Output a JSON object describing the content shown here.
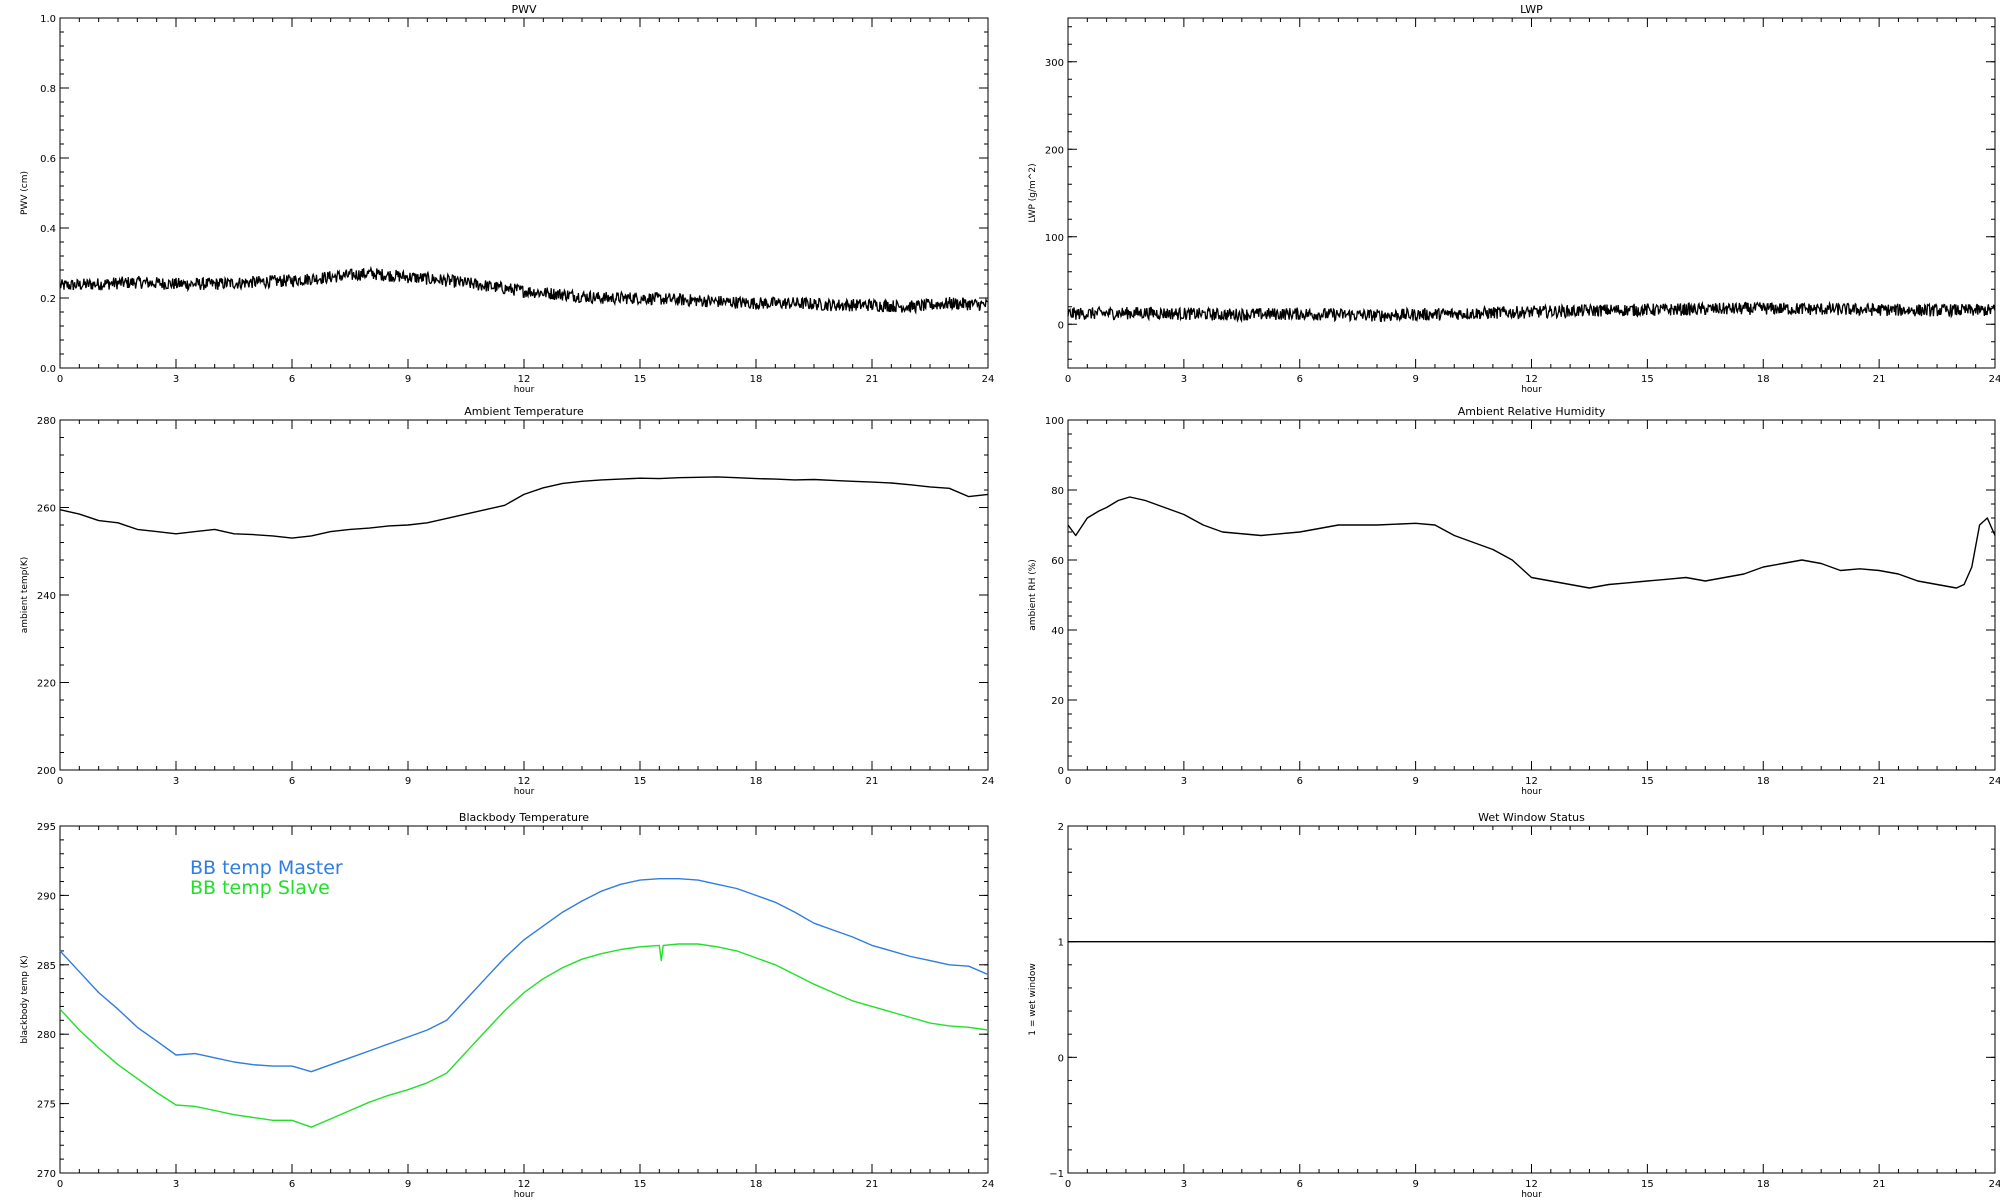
{
  "chart_data": [
    {
      "id": "pwv",
      "type": "line",
      "title": "PWV",
      "xlabel": "hour",
      "ylabel": "PWV (cm)",
      "xlim": [
        0,
        24
      ],
      "ylim": [
        0.0,
        1.0
      ],
      "x_ticks": [
        0,
        3,
        6,
        9,
        12,
        15,
        18,
        21,
        24
      ],
      "y_ticks": [
        0.0,
        0.2,
        0.4,
        0.6,
        0.8,
        1.0
      ],
      "x_tick_labels": [
        "0",
        "3",
        "6",
        "9",
        "12",
        "15",
        "18",
        "21",
        "24"
      ],
      "y_tick_labels": [
        "0.0",
        "0.2",
        "0.4",
        "0.6",
        "0.8",
        "1.0"
      ],
      "grid": false,
      "noisy": true,
      "series": [
        {
          "color": "#000000",
          "x": [
            0,
            1,
            2,
            3,
            4,
            5,
            6,
            7,
            8,
            9,
            10,
            11,
            12,
            13,
            14,
            15,
            16,
            17,
            18,
            19,
            20,
            21,
            22,
            23,
            24
          ],
          "y": [
            0.235,
            0.24,
            0.245,
            0.24,
            0.24,
            0.245,
            0.25,
            0.26,
            0.27,
            0.26,
            0.25,
            0.235,
            0.22,
            0.21,
            0.2,
            0.2,
            0.195,
            0.19,
            0.185,
            0.185,
            0.18,
            0.18,
            0.175,
            0.185,
            0.18
          ]
        }
      ]
    },
    {
      "id": "lwp",
      "type": "line",
      "title": "LWP",
      "xlabel": "hour",
      "ylabel": "LWP (g/m^2)",
      "xlim": [
        0,
        24
      ],
      "ylim": [
        -50,
        350
      ],
      "x_ticks": [
        0,
        3,
        6,
        9,
        12,
        15,
        18,
        21,
        24
      ],
      "y_ticks": [
        0,
        100,
        200,
        300
      ],
      "x_tick_labels": [
        "0",
        "3",
        "6",
        "9",
        "12",
        "15",
        "18",
        "21",
        "24"
      ],
      "y_tick_labels": [
        "0",
        "100",
        "200",
        "300"
      ],
      "grid": false,
      "noisy": true,
      "series": [
        {
          "color": "#000000",
          "x": [
            0,
            2,
            4,
            6,
            8,
            10,
            12,
            14,
            16,
            18,
            20,
            22,
            24
          ],
          "y": [
            12,
            13,
            11,
            12,
            10,
            12,
            14,
            16,
            17,
            18,
            17,
            16,
            16
          ]
        }
      ]
    },
    {
      "id": "ambient-temperature",
      "type": "line",
      "title": "Ambient Temperature",
      "xlabel": "hour",
      "ylabel": "ambient temp(K)",
      "xlim": [
        0,
        24
      ],
      "ylim": [
        200,
        280
      ],
      "x_ticks": [
        0,
        3,
        6,
        9,
        12,
        15,
        18,
        21,
        24
      ],
      "y_ticks": [
        200,
        220,
        240,
        260,
        280
      ],
      "x_tick_labels": [
        "0",
        "3",
        "6",
        "9",
        "12",
        "15",
        "18",
        "21",
        "24"
      ],
      "y_tick_labels": [
        "200",
        "220",
        "240",
        "260",
        "280"
      ],
      "grid": false,
      "noisy": false,
      "series": [
        {
          "color": "#000000",
          "x": [
            0,
            0.5,
            1,
            1.5,
            2,
            2.5,
            3,
            3.5,
            4,
            4.5,
            5,
            5.5,
            6,
            6.5,
            7,
            7.5,
            8,
            8.5,
            9,
            9.5,
            10,
            10.5,
            11,
            11.5,
            12,
            12.5,
            13,
            13.5,
            14,
            14.5,
            15,
            15.5,
            16,
            16.5,
            17,
            17.5,
            18,
            18.5,
            19,
            19.5,
            20,
            20.5,
            21,
            21.5,
            22,
            22.5,
            23,
            23.5,
            24
          ],
          "y": [
            259.5,
            258.5,
            257.0,
            256.5,
            255.0,
            254.5,
            254.0,
            254.5,
            255.0,
            254.0,
            253.8,
            253.5,
            253.0,
            253.5,
            254.5,
            255.0,
            255.3,
            255.8,
            256.0,
            256.5,
            257.5,
            258.5,
            259.5,
            260.5,
            263.0,
            264.5,
            265.5,
            266.0,
            266.3,
            266.5,
            266.7,
            266.6,
            266.8,
            266.9,
            267.0,
            266.8,
            266.6,
            266.5,
            266.3,
            266.4,
            266.2,
            266.0,
            265.8,
            265.6,
            265.2,
            264.7,
            264.4,
            262.5,
            263.0
          ]
        }
      ]
    },
    {
      "id": "ambient-relative-humidity",
      "type": "line",
      "title": "Ambient Relative Humidity",
      "xlabel": "hour",
      "ylabel": "ambient RH (%)",
      "xlim": [
        0,
        24
      ],
      "ylim": [
        0,
        100
      ],
      "x_ticks": [
        0,
        3,
        6,
        9,
        12,
        15,
        18,
        21,
        24
      ],
      "y_ticks": [
        0,
        20,
        40,
        60,
        80,
        100
      ],
      "x_tick_labels": [
        "0",
        "3",
        "6",
        "9",
        "12",
        "15",
        "18",
        "21",
        "24"
      ],
      "y_tick_labels": [
        "0",
        "20",
        "40",
        "60",
        "80",
        "100"
      ],
      "grid": false,
      "noisy": false,
      "series": [
        {
          "color": "#000000",
          "x": [
            0,
            0.2,
            0.5,
            0.8,
            1.0,
            1.3,
            1.6,
            2.0,
            2.5,
            3.0,
            3.5,
            4.0,
            5.0,
            6.0,
            7.0,
            8.0,
            9.0,
            9.5,
            10.0,
            10.5,
            11.0,
            11.5,
            12.0,
            12.5,
            13.0,
            13.5,
            14.0,
            14.5,
            15.0,
            15.5,
            16.0,
            16.5,
            17.0,
            17.5,
            18.0,
            18.5,
            19.0,
            19.5,
            20.0,
            20.5,
            21.0,
            21.5,
            22.0,
            22.5,
            23.0,
            23.2,
            23.4,
            23.6,
            23.8,
            24.0
          ],
          "y": [
            70,
            67,
            72,
            74,
            75,
            77,
            78,
            77,
            75,
            73,
            70,
            68,
            67,
            68,
            70,
            70,
            70.5,
            70,
            67,
            65,
            63,
            60,
            55,
            54,
            53,
            52,
            53,
            53.5,
            54,
            54.5,
            55,
            54,
            55,
            56,
            58,
            59,
            60,
            59,
            57,
            57.5,
            57,
            56,
            54,
            53,
            52,
            53,
            58,
            70,
            72,
            67
          ]
        }
      ]
    },
    {
      "id": "blackbody-temperature",
      "type": "line",
      "title": "Blackbody Temperature",
      "xlabel": "hour",
      "ylabel": "blackbody temp (K)",
      "xlim": [
        0,
        24
      ],
      "ylim": [
        270,
        295
      ],
      "x_ticks": [
        0,
        3,
        6,
        9,
        12,
        15,
        18,
        21,
        24
      ],
      "y_ticks": [
        270,
        275,
        280,
        285,
        290,
        295
      ],
      "x_tick_labels": [
        "0",
        "3",
        "6",
        "9",
        "12",
        "15",
        "18",
        "21",
        "24"
      ],
      "y_tick_labels": [
        "270",
        "275",
        "280",
        "285",
        "290",
        "295"
      ],
      "grid": false,
      "noisy": false,
      "legend": "top-left",
      "series": [
        {
          "name": "BB temp Master",
          "color": "#2f7de1",
          "x": [
            0,
            0.5,
            1,
            1.5,
            2,
            2.5,
            3,
            3.5,
            4,
            4.5,
            5,
            5.5,
            6,
            6.5,
            7,
            7.5,
            8,
            8.5,
            9,
            9.5,
            10,
            10.5,
            11,
            11.5,
            12,
            12.5,
            13,
            13.5,
            14,
            14.5,
            15,
            15.5,
            16,
            16.5,
            17,
            17.5,
            18,
            18.5,
            19,
            19.5,
            20,
            20.5,
            21,
            21.5,
            22,
            22.5,
            23,
            23.5,
            24
          ],
          "y": [
            286.0,
            284.5,
            283.0,
            281.8,
            280.5,
            279.5,
            278.5,
            278.6,
            278.3,
            278.0,
            277.8,
            277.7,
            277.7,
            277.3,
            277.8,
            278.3,
            278.8,
            279.3,
            279.8,
            280.3,
            281.0,
            282.5,
            284.0,
            285.5,
            286.8,
            287.8,
            288.8,
            289.6,
            290.3,
            290.8,
            291.1,
            291.2,
            291.2,
            291.1,
            290.8,
            290.5,
            290.0,
            289.5,
            288.8,
            288.0,
            287.5,
            287.0,
            286.4,
            286.0,
            285.6,
            285.3,
            285.0,
            284.9,
            284.3
          ]
        },
        {
          "name": "BB temp Slave",
          "color": "#22e02a",
          "x": [
            0,
            0.5,
            1,
            1.5,
            2,
            2.5,
            3,
            3.5,
            4,
            4.5,
            5,
            5.5,
            6,
            6.5,
            7,
            7.5,
            8,
            8.5,
            9,
            9.5,
            10,
            10.5,
            11,
            11.5,
            12,
            12.5,
            13,
            13.5,
            14,
            14.5,
            15,
            15.5,
            15.55,
            15.6,
            16,
            16.5,
            17,
            17.5,
            18,
            18.5,
            19,
            19.5,
            20,
            20.5,
            21,
            21.5,
            22,
            22.5,
            23,
            23.5,
            24
          ],
          "y": [
            281.8,
            280.3,
            279.0,
            277.8,
            276.8,
            275.8,
            274.9,
            274.8,
            274.5,
            274.2,
            274.0,
            273.8,
            273.8,
            273.3,
            273.9,
            274.5,
            275.1,
            275.6,
            276.0,
            276.5,
            277.2,
            278.7,
            280.2,
            281.7,
            283.0,
            284.0,
            284.8,
            285.4,
            285.8,
            286.1,
            286.3,
            286.4,
            285.3,
            286.4,
            286.5,
            286.5,
            286.3,
            286.0,
            285.5,
            285.0,
            284.3,
            283.6,
            283.0,
            282.4,
            282.0,
            281.6,
            281.2,
            280.8,
            280.6,
            280.5,
            280.3
          ]
        }
      ]
    },
    {
      "id": "wet-window-status",
      "type": "line",
      "title": "Wet Window Status",
      "xlabel": "hour",
      "ylabel": "1 = wet window",
      "xlim": [
        0,
        24
      ],
      "ylim": [
        -1,
        2
      ],
      "x_ticks": [
        0,
        3,
        6,
        9,
        12,
        15,
        18,
        21,
        24
      ],
      "y_ticks": [
        -1,
        0,
        1,
        2
      ],
      "x_tick_labels": [
        "0",
        "3",
        "6",
        "9",
        "12",
        "15",
        "18",
        "21",
        "24"
      ],
      "y_tick_labels": [
        "−1",
        "0",
        "1",
        "2"
      ],
      "grid": false,
      "noisy": false,
      "series": [
        {
          "color": "#000000",
          "x": [
            0,
            24
          ],
          "y": [
            1,
            1
          ]
        }
      ]
    }
  ]
}
